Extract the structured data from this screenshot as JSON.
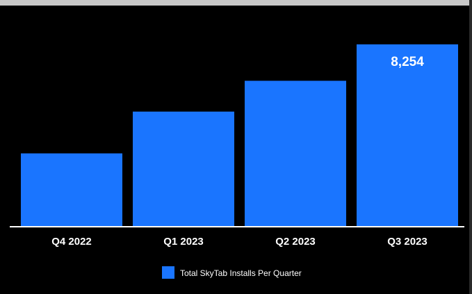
{
  "chart_data": {
    "type": "bar",
    "categories": [
      "Q4 2022",
      "Q1 2023",
      "Q2 2023",
      "Q3 2023"
    ],
    "series": [
      {
        "name": "Total SkyTab Installs Per Quarter",
        "values": [
          3300,
          5200,
          6600,
          8254
        ],
        "color": "#1a75ff"
      }
    ],
    "data_labels": [
      "",
      "",
      "",
      "8,254"
    ],
    "title": "",
    "xlabel": "",
    "ylabel": "",
    "ylim": [
      0,
      8254
    ],
    "grid": false,
    "legend_position": "bottom"
  },
  "colors": {
    "background": "#000000",
    "bar": "#1a75ff",
    "axis": "#ffffff"
  }
}
